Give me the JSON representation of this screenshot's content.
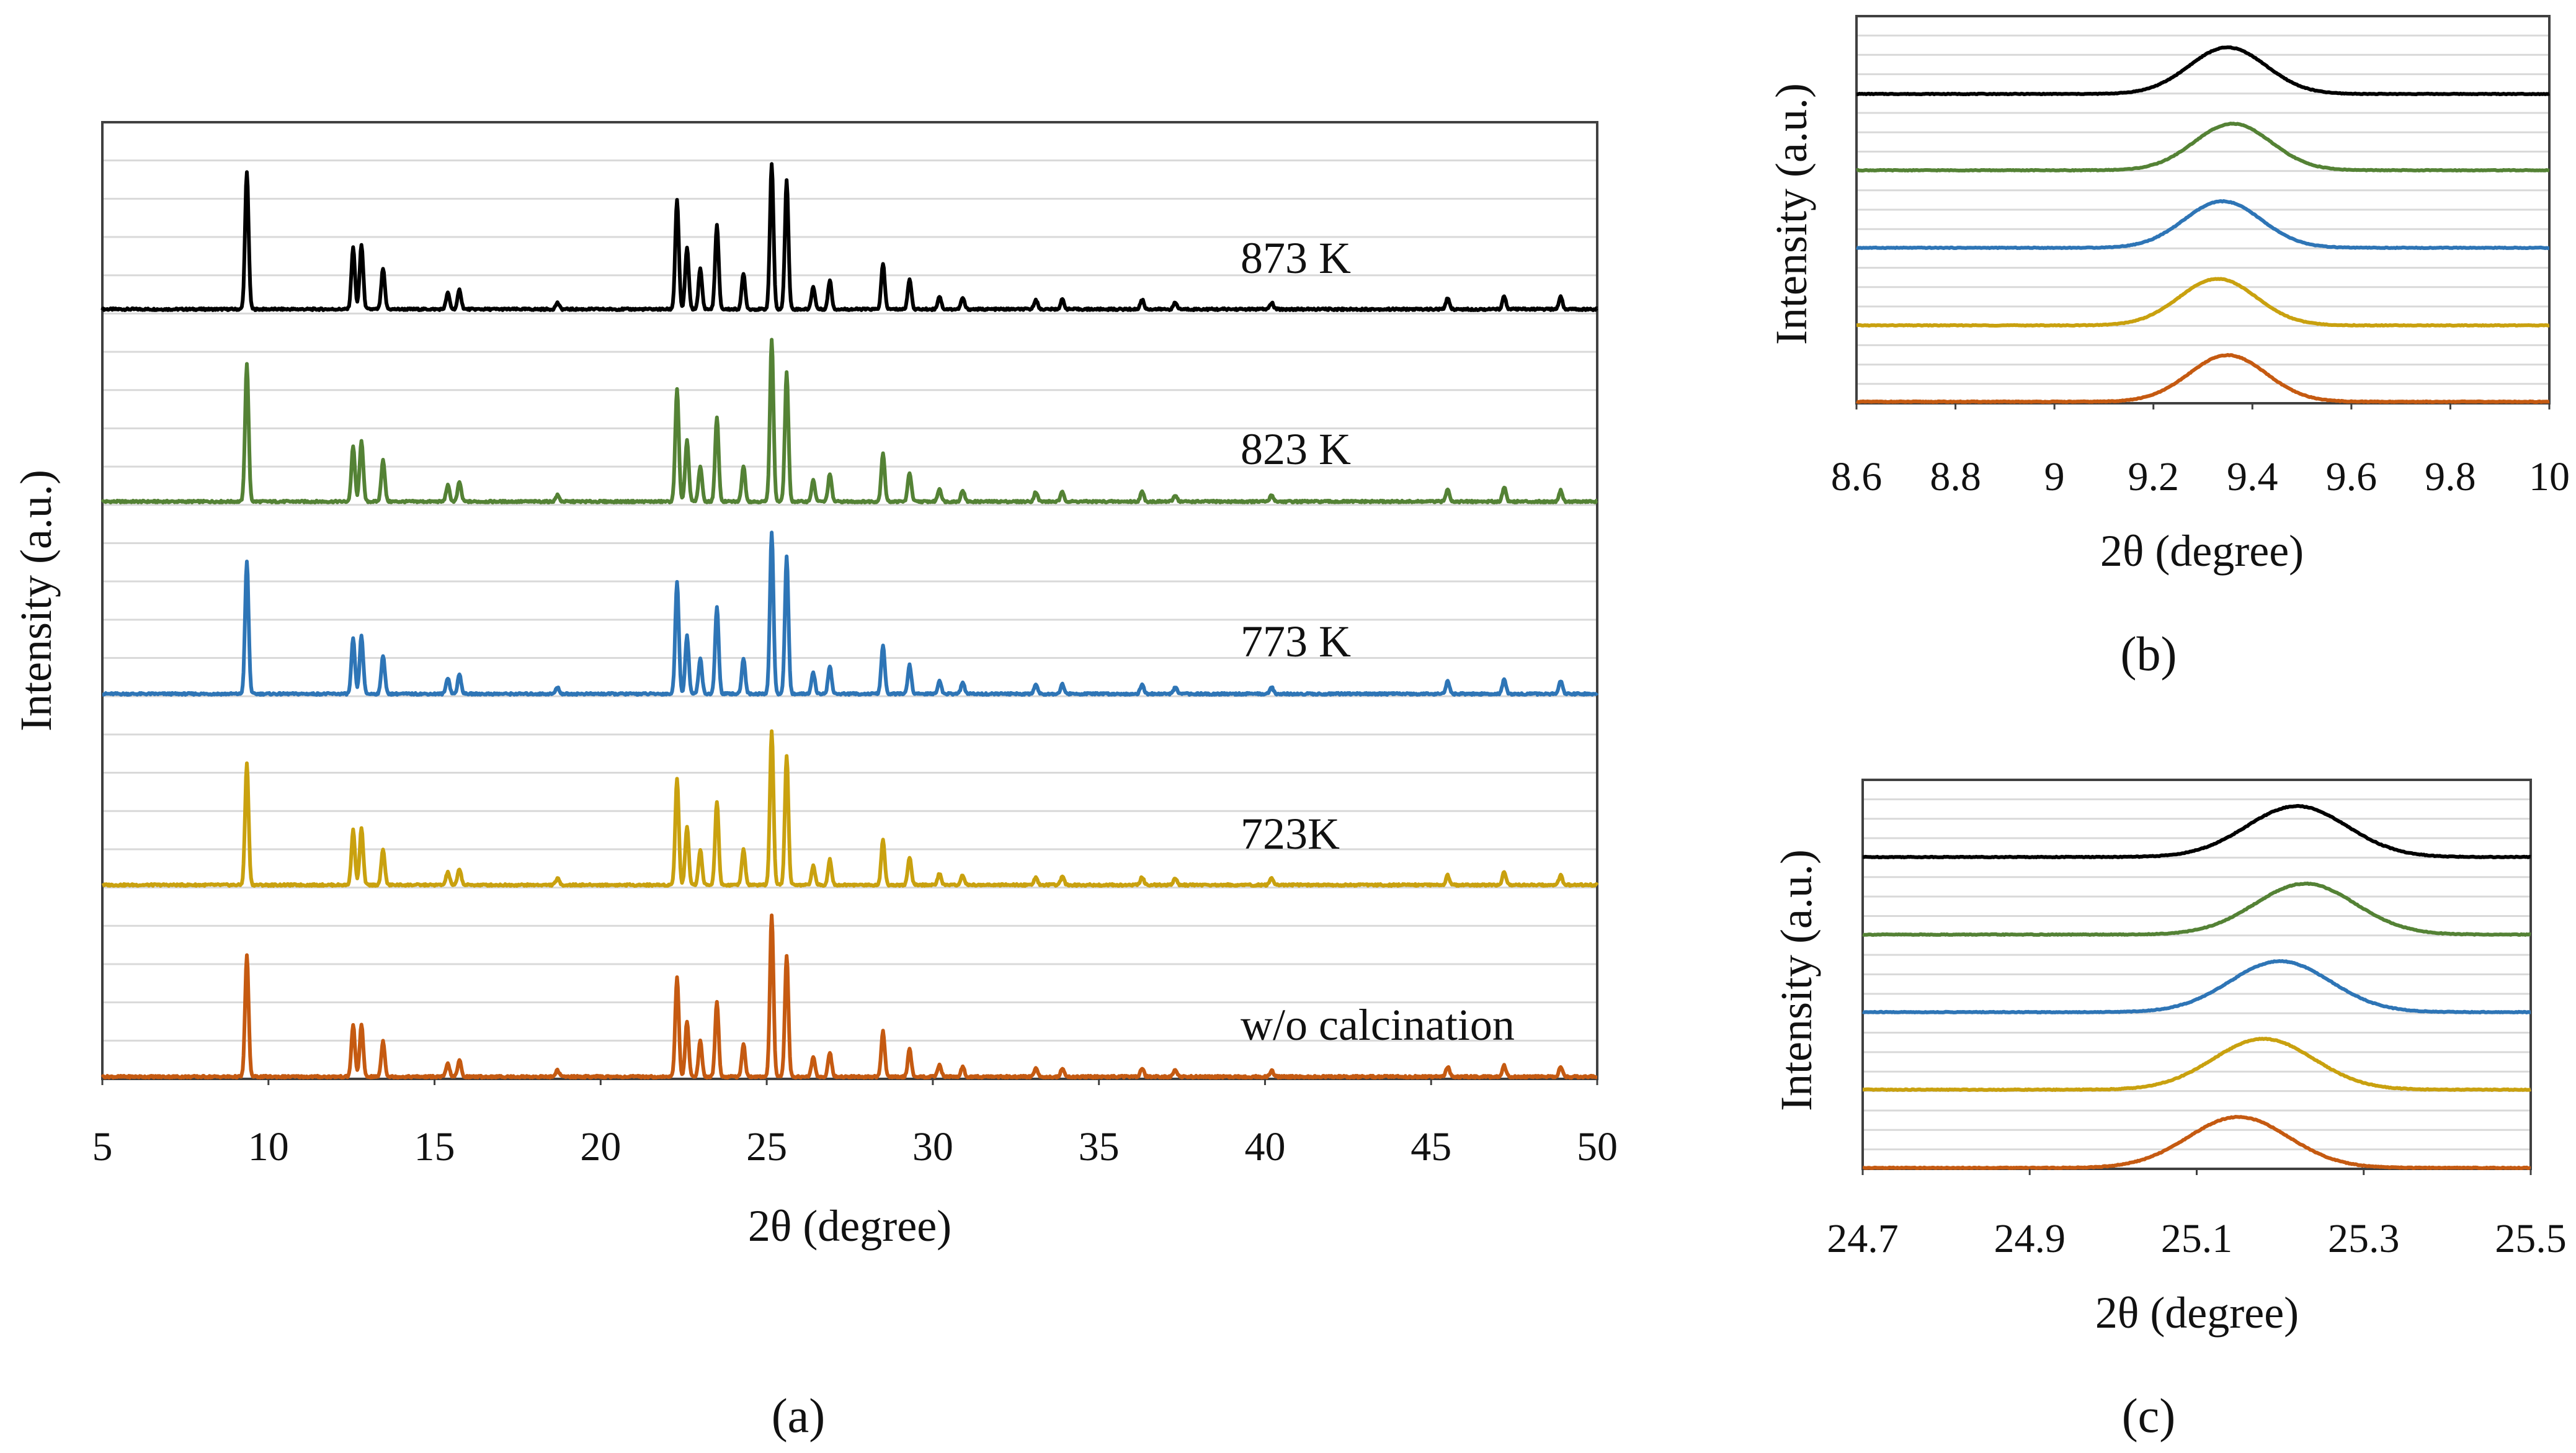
{
  "chart_data": [
    {
      "panel": "a",
      "type": "line",
      "caption": "(a)",
      "xlabel": "2θ (degree)",
      "ylabel": "Intensity (a.u.)",
      "xlim": [
        5,
        50
      ],
      "xticks": [
        5,
        10,
        15,
        20,
        25,
        30,
        35,
        40,
        45,
        50
      ],
      "grid": true,
      "peaks_deg": [
        9.35,
        12.55,
        12.8,
        13.45,
        15.4,
        15.75,
        18.7,
        22.3,
        22.6,
        23.0,
        23.5,
        24.3,
        25.15,
        25.6,
        26.4,
        26.9,
        28.5,
        29.3,
        30.2,
        30.9,
        33.1,
        33.9,
        36.3,
        37.3,
        40.2,
        45.5,
        47.2,
        48.9
      ],
      "series": [
        {
          "name": "873 K",
          "color": "#000000",
          "peak_heights": [
            0.85,
            0.38,
            0.4,
            0.25,
            0.1,
            0.12,
            0.04,
            0.68,
            0.38,
            0.25,
            0.52,
            0.22,
            0.9,
            0.8,
            0.14,
            0.18,
            0.28,
            0.19,
            0.08,
            0.07,
            0.06,
            0.06,
            0.06,
            0.04,
            0.04,
            0.07,
            0.08,
            0.08
          ]
        },
        {
          "name": "823 K",
          "color": "#548235",
          "peak_heights": [
            0.85,
            0.34,
            0.38,
            0.26,
            0.1,
            0.12,
            0.04,
            0.7,
            0.38,
            0.22,
            0.52,
            0.22,
            1.0,
            0.8,
            0.13,
            0.17,
            0.3,
            0.18,
            0.08,
            0.07,
            0.06,
            0.06,
            0.06,
            0.04,
            0.04,
            0.08,
            0.09,
            0.07
          ]
        },
        {
          "name": "773 K",
          "color": "#2E75B6",
          "peak_heights": [
            0.82,
            0.34,
            0.36,
            0.24,
            0.1,
            0.12,
            0.04,
            0.7,
            0.36,
            0.22,
            0.54,
            0.22,
            1.0,
            0.85,
            0.13,
            0.17,
            0.3,
            0.18,
            0.08,
            0.07,
            0.06,
            0.06,
            0.06,
            0.04,
            0.04,
            0.08,
            0.09,
            0.08
          ]
        },
        {
          "name": "723K",
          "color": "#C9A10F",
          "peak_heights": [
            0.75,
            0.34,
            0.35,
            0.22,
            0.08,
            0.1,
            0.04,
            0.66,
            0.36,
            0.22,
            0.52,
            0.22,
            0.95,
            0.8,
            0.12,
            0.16,
            0.28,
            0.17,
            0.07,
            0.06,
            0.05,
            0.05,
            0.05,
            0.04,
            0.04,
            0.06,
            0.08,
            0.06
          ]
        },
        {
          "name": "w/o calcination",
          "color": "#C55A11",
          "peak_heights": [
            0.75,
            0.32,
            0.32,
            0.22,
            0.08,
            0.1,
            0.04,
            0.62,
            0.34,
            0.22,
            0.46,
            0.2,
            1.0,
            0.75,
            0.12,
            0.15,
            0.28,
            0.17,
            0.07,
            0.06,
            0.05,
            0.05,
            0.05,
            0.04,
            0.04,
            0.06,
            0.07,
            0.06
          ]
        }
      ]
    },
    {
      "panel": "b",
      "type": "line",
      "caption": "(b)",
      "xlabel": "2θ (degree)",
      "ylabel": "Intensity (a.u.)",
      "xlim": [
        8.6,
        10
      ],
      "xticks": [
        "8.6",
        "8.8",
        "9",
        "9.2",
        "9.4",
        "9.6",
        "9.8",
        "10"
      ],
      "grid": true,
      "series": [
        {
          "name": "873 K",
          "color": "#000000",
          "peak_center": 9.35,
          "peak_width": 0.11,
          "peak_height": 1.0
        },
        {
          "name": "823 K",
          "color": "#548235",
          "peak_center": 9.36,
          "peak_width": 0.11,
          "peak_height": 1.0
        },
        {
          "name": "773 K",
          "color": "#2E75B6",
          "peak_center": 9.34,
          "peak_width": 0.11,
          "peak_height": 1.0
        },
        {
          "name": "723K",
          "color": "#C9A10F",
          "peak_center": 9.33,
          "peak_width": 0.11,
          "peak_height": 1.0
        },
        {
          "name": "w/o calcination",
          "color": "#C55A11",
          "peak_center": 9.35,
          "peak_width": 0.11,
          "peak_height": 1.0
        }
      ]
    },
    {
      "panel": "c",
      "type": "line",
      "caption": "(c)",
      "xlabel": "2θ (degree)",
      "ylabel": "Intensity (a.u.)",
      "xlim": [
        24.7,
        25.5
      ],
      "xticks": [
        "24.7",
        "24.9",
        "25.1",
        "25.3",
        "25.5"
      ],
      "grid": true,
      "series": [
        {
          "name": "873 K",
          "color": "#000000",
          "peak_center": 25.22,
          "peak_width": 0.085,
          "peak_height": 1.0
        },
        {
          "name": "823 K",
          "color": "#548235",
          "peak_center": 25.23,
          "peak_width": 0.085,
          "peak_height": 1.0
        },
        {
          "name": "773 K",
          "color": "#2E75B6",
          "peak_center": 25.2,
          "peak_width": 0.085,
          "peak_height": 1.0
        },
        {
          "name": "723K",
          "color": "#C9A10F",
          "peak_center": 25.18,
          "peak_width": 0.085,
          "peak_height": 1.0
        },
        {
          "name": "w/o calcination",
          "color": "#C55A11",
          "peak_center": 25.15,
          "peak_width": 0.085,
          "peak_height": 1.0
        }
      ]
    }
  ]
}
